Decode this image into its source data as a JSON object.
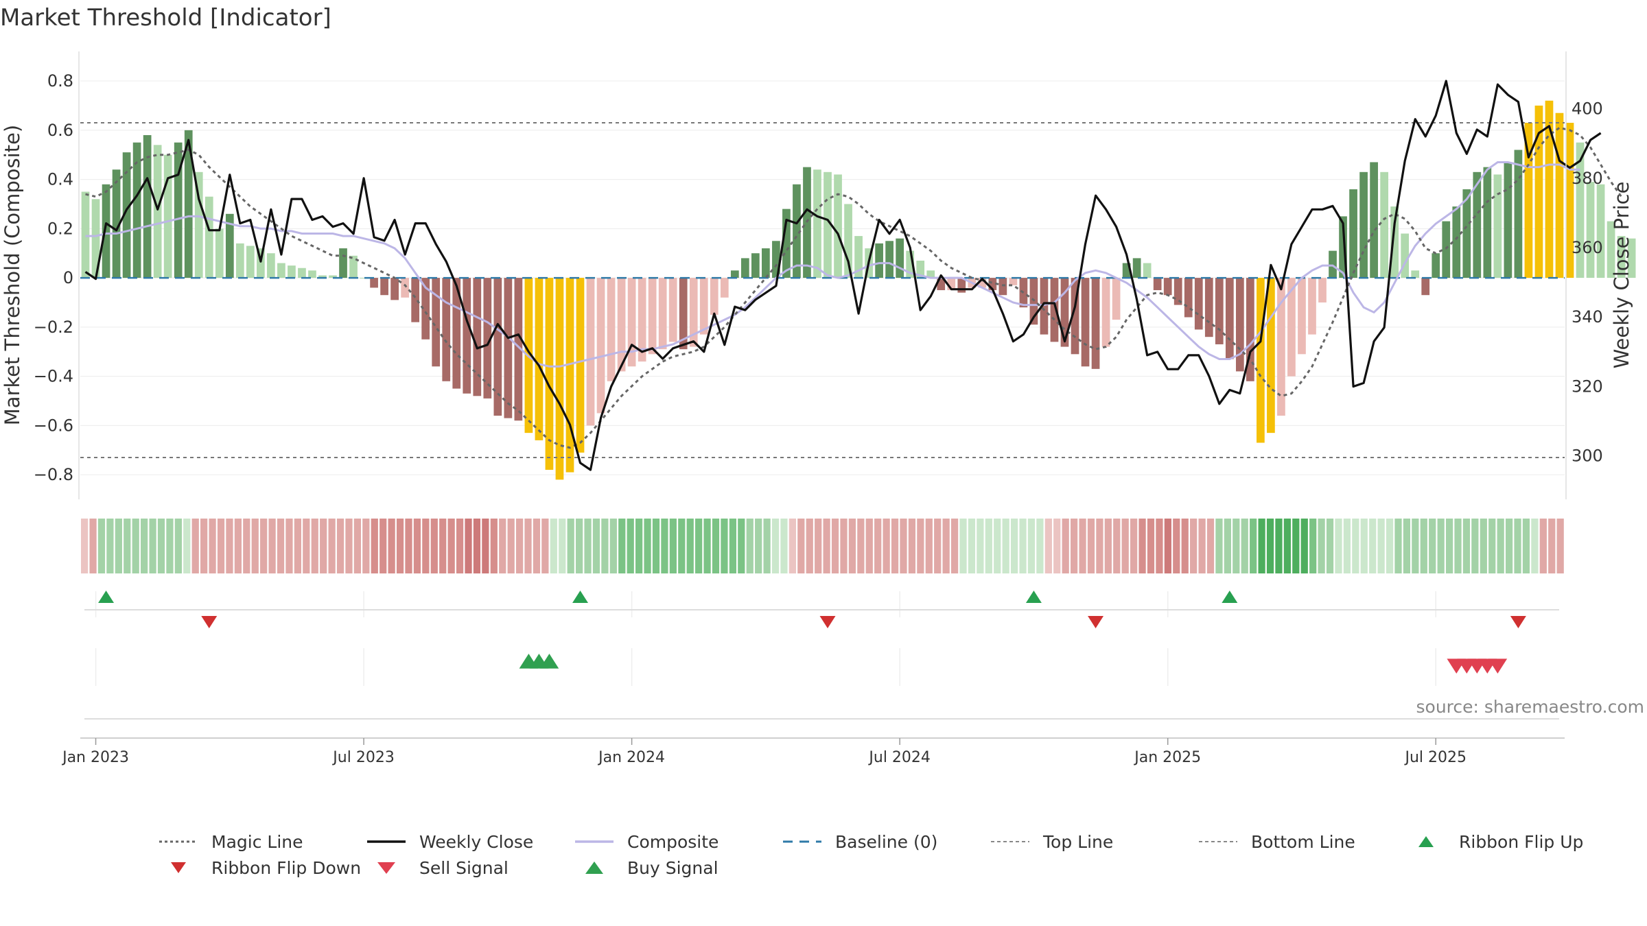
{
  "chart_data": {
    "type": "bar",
    "title": "Market Threshold [Indicator]",
    "ylabel": "Market Threshold (Composite)",
    "y2label": "Weekly Close Price",
    "ylim": [
      -0.9,
      0.92
    ],
    "y2lim": [
      287.5,
      416.5
    ],
    "yticks": [
      {
        "v": 0.8,
        "label": "0.8"
      },
      {
        "v": 0.6,
        "label": "0.6"
      },
      {
        "v": 0.4,
        "label": "0.4"
      },
      {
        "v": 0.2,
        "label": "0.2"
      },
      {
        "v": 0,
        "label": "0"
      },
      {
        "v": -0.2,
        "label": "−0.2"
      },
      {
        "v": -0.4,
        "label": "−0.4"
      },
      {
        "v": -0.6,
        "label": "−0.6"
      },
      {
        "v": -0.8,
        "label": "−0.8"
      }
    ],
    "y2ticks": [
      {
        "v": 400,
        "label": "400"
      },
      {
        "v": 380,
        "label": "380"
      },
      {
        "v": 360,
        "label": "360"
      },
      {
        "v": 340,
        "label": "340"
      },
      {
        "v": 320,
        "label": "320"
      },
      {
        "v": 300,
        "label": "300"
      }
    ],
    "xticks": [
      {
        "week": 1,
        "label": "Jan 2023"
      },
      {
        "week": 27,
        "label": "Jul 2023"
      },
      {
        "week": 53,
        "label": "Jan 2024"
      },
      {
        "week": 79,
        "label": "Jul 2024"
      },
      {
        "week": 105,
        "label": "Jan 2025"
      },
      {
        "week": 131,
        "label": "Jul 2025"
      }
    ],
    "weeks": 144,
    "top_line": 0.63,
    "bottom_line": -0.73,
    "baseline": 0,
    "composite": [
      0.35,
      0.32,
      0.38,
      0.44,
      0.51,
      0.55,
      0.58,
      0.54,
      0.5,
      0.55,
      0.6,
      0.43,
      0.33,
      0.2,
      0.26,
      0.14,
      0.13,
      0.12,
      0.1,
      0.06,
      0.05,
      0.04,
      0.03,
      0.01,
      0.01,
      0.12,
      0.09,
      0,
      -0.04,
      -0.07,
      -0.09,
      -0.08,
      -0.18,
      -0.25,
      -0.36,
      -0.42,
      -0.45,
      -0.47,
      -0.48,
      -0.49,
      -0.56,
      -0.57,
      -0.58,
      -0.63,
      -0.66,
      -0.78,
      -0.82,
      -0.79,
      -0.71,
      -0.6,
      -0.55,
      -0.42,
      -0.38,
      -0.36,
      -0.34,
      -0.31,
      -0.29,
      -0.26,
      -0.29,
      -0.28,
      -0.23,
      -0.15,
      -0.08,
      0.03,
      0.08,
      0.1,
      0.12,
      0.15,
      0.28,
      0.38,
      0.45,
      0.44,
      0.43,
      0.42,
      0.3,
      0.17,
      0.12,
      0.14,
      0.15,
      0.16,
      0.11,
      0.07,
      0.03,
      -0.05,
      -0.05,
      -0.06,
      -0.04,
      -0.04,
      -0.05,
      -0.07,
      -0.03,
      -0.12,
      -0.19,
      -0.23,
      -0.26,
      -0.28,
      -0.31,
      -0.36,
      -0.37,
      -0.28,
      -0.17,
      0.06,
      0.08,
      0.06,
      -0.05,
      -0.07,
      -0.11,
      -0.16,
      -0.21,
      -0.24,
      -0.27,
      -0.33,
      -0.38,
      -0.42,
      -0.67,
      -0.63,
      -0.56,
      -0.4,
      -0.31,
      -0.23,
      -0.1,
      0.11,
      0.25,
      0.36,
      0.43,
      0.47,
      0.43,
      0.29,
      0.18,
      0.03,
      -0.07,
      0.1,
      0.23,
      0.29,
      0.36,
      0.43,
      0.45,
      0.42,
      0.47,
      0.52,
      0.63,
      0.7,
      0.72,
      0.67,
      0.63,
      0.55,
      0.39,
      0.38,
      0.23,
      0.17,
      0.16
    ],
    "magic_line": [
      0.34,
      0.33,
      0.35,
      0.39,
      0.43,
      0.47,
      0.49,
      0.5,
      0.5,
      0.51,
      0.52,
      0.5,
      0.45,
      0.41,
      0.37,
      0.33,
      0.29,
      0.26,
      0.23,
      0.2,
      0.17,
      0.15,
      0.13,
      0.11,
      0.09,
      0.09,
      0.08,
      0.06,
      0.04,
      0.02,
      0,
      -0.03,
      -0.08,
      -0.14,
      -0.2,
      -0.26,
      -0.31,
      -0.35,
      -0.39,
      -0.43,
      -0.47,
      -0.51,
      -0.54,
      -0.58,
      -0.62,
      -0.66,
      -0.68,
      -0.69,
      -0.67,
      -0.63,
      -0.58,
      -0.53,
      -0.48,
      -0.44,
      -0.4,
      -0.37,
      -0.34,
      -0.32,
      -0.31,
      -0.3,
      -0.28,
      -0.24,
      -0.2,
      -0.15,
      -0.1,
      -0.05,
      0,
      0.05,
      0.11,
      0.17,
      0.23,
      0.28,
      0.32,
      0.34,
      0.33,
      0.3,
      0.26,
      0.23,
      0.21,
      0.19,
      0.17,
      0.14,
      0.11,
      0.07,
      0.04,
      0.02,
      0,
      -0.01,
      -0.02,
      -0.03,
      -0.03,
      -0.06,
      -0.09,
      -0.13,
      -0.17,
      -0.21,
      -0.24,
      -0.27,
      -0.29,
      -0.28,
      -0.24,
      -0.17,
      -0.12,
      -0.07,
      -0.06,
      -0.07,
      -0.09,
      -0.12,
      -0.15,
      -0.18,
      -0.21,
      -0.25,
      -0.29,
      -0.33,
      -0.4,
      -0.45,
      -0.48,
      -0.47,
      -0.42,
      -0.36,
      -0.27,
      -0.18,
      -0.08,
      0.02,
      0.11,
      0.19,
      0.24,
      0.26,
      0.24,
      0.19,
      0.12,
      0.1,
      0.12,
      0.16,
      0.21,
      0.26,
      0.31,
      0.34,
      0.36,
      0.4,
      0.46,
      0.53,
      0.58,
      0.61,
      0.6,
      0.58,
      0.53,
      0.46,
      0.39,
      0.33
    ],
    "composite_smooth": [
      0.17,
      0.17,
      0.18,
      0.18,
      0.19,
      0.2,
      0.21,
      0.22,
      0.23,
      0.24,
      0.25,
      0.25,
      0.24,
      0.23,
      0.22,
      0.21,
      0.21,
      0.2,
      0.2,
      0.19,
      0.19,
      0.18,
      0.18,
      0.18,
      0.18,
      0.17,
      0.17,
      0.16,
      0.15,
      0.14,
      0.12,
      0.08,
      0.02,
      -0.04,
      -0.07,
      -0.1,
      -0.12,
      -0.14,
      -0.16,
      -0.18,
      -0.21,
      -0.24,
      -0.28,
      -0.32,
      -0.35,
      -0.36,
      -0.36,
      -0.35,
      -0.34,
      -0.33,
      -0.32,
      -0.31,
      -0.3,
      -0.3,
      -0.29,
      -0.29,
      -0.28,
      -0.27,
      -0.25,
      -0.23,
      -0.21,
      -0.19,
      -0.17,
      -0.15,
      -0.12,
      -0.08,
      -0.04,
      0,
      0.03,
      0.05,
      0.05,
      0.04,
      0.01,
      0,
      0.01,
      0.03,
      0.05,
      0.06,
      0.06,
      0.04,
      0.02,
      0.01,
      0,
      0,
      0,
      0,
      -0.02,
      -0.04,
      -0.06,
      -0.08,
      -0.1,
      -0.11,
      -0.11,
      -0.11,
      -0.1,
      -0.06,
      -0.01,
      0.02,
      0.03,
      0.02,
      0,
      -0.02,
      -0.05,
      -0.08,
      -0.12,
      -0.16,
      -0.2,
      -0.24,
      -0.28,
      -0.31,
      -0.33,
      -0.33,
      -0.31,
      -0.27,
      -0.22,
      -0.16,
      -0.1,
      -0.05,
      0,
      0.03,
      0.05,
      0.05,
      0.02,
      -0.06,
      -0.12,
      -0.14,
      -0.1,
      -0.02,
      0.06,
      0.13,
      0.18,
      0.22,
      0.25,
      0.28,
      0.32,
      0.38,
      0.44,
      0.47,
      0.47,
      0.46,
      0.45,
      0.45,
      0.46,
      0.46,
      0.44,
      0.44
    ],
    "weekly_close": [
      353,
      351,
      367,
      365,
      371,
      375,
      380,
      371,
      380,
      381,
      391,
      374,
      365,
      365,
      381,
      367,
      368,
      356,
      371,
      358,
      374,
      374,
      368,
      369,
      366,
      367,
      364,
      380,
      363,
      362,
      368,
      358,
      367,
      367,
      361,
      356,
      349,
      339,
      331,
      332,
      338,
      334,
      335,
      330,
      326,
      320,
      315,
      309,
      298,
      296,
      311,
      320,
      326,
      332,
      330,
      331,
      328,
      331,
      332,
      333,
      330,
      341,
      332,
      343,
      342,
      345,
      347,
      349,
      368,
      367,
      371,
      369,
      368,
      364,
      356,
      341,
      356,
      368,
      364,
      368,
      360,
      342,
      346,
      352,
      348,
      348,
      348,
      351,
      348,
      341,
      333,
      335,
      340,
      344,
      344,
      333,
      343,
      361,
      375,
      371,
      366,
      358,
      345,
      329,
      330,
      325,
      325,
      329,
      329,
      323,
      315,
      319,
      318,
      330,
      333,
      355,
      348,
      361,
      366,
      371,
      371,
      372,
      367,
      320,
      321,
      333,
      337,
      367,
      385,
      397,
      392,
      398,
      408,
      393,
      387,
      394,
      392,
      407,
      404,
      402,
      386,
      393,
      395,
      385,
      383,
      385,
      391,
      393
    ],
    "ribbon": [
      -2,
      -3,
      2,
      2,
      2,
      2,
      2,
      2,
      2,
      2,
      2,
      2,
      1,
      -3,
      -3,
      -3,
      -3,
      -3,
      -3,
      -3,
      -3,
      -3,
      -3,
      -3,
      -3,
      -3,
      -3,
      -3,
      -3,
      -3,
      -3,
      -3,
      -3,
      -3,
      -4,
      -4,
      -4,
      -4,
      -4,
      -4,
      -4,
      -4,
      -4,
      -4,
      -4,
      -5,
      -5,
      -5,
      -4,
      -3,
      -3,
      -3,
      -3,
      -3,
      -3,
      1,
      1,
      2,
      2,
      2,
      2,
      2,
      2,
      3,
      3,
      3,
      3,
      3,
      3,
      3,
      3,
      3,
      3,
      3,
      3,
      3,
      3,
      3,
      2,
      2,
      2,
      1,
      1,
      -2,
      -3,
      -3,
      -3,
      -3,
      -3,
      -3,
      -3,
      -3,
      -3,
      -3,
      -3,
      -3,
      -3,
      -3,
      -3,
      -3,
      -3,
      -3,
      -3,
      1,
      1,
      1,
      1,
      1,
      1,
      1,
      1,
      1,
      1,
      -2,
      -2,
      -3,
      -3,
      -3,
      -3,
      -3,
      -3,
      -3,
      -3,
      -3,
      -4,
      -4,
      -4,
      -5,
      -4,
      -4,
      -3,
      -3,
      -3,
      2,
      2,
      2,
      2,
      3,
      4,
      4,
      4,
      4,
      4,
      4,
      3,
      2,
      2,
      1,
      1,
      1,
      1,
      1,
      1,
      1,
      2,
      2,
      2,
      2,
      2,
      2,
      2,
      2,
      2,
      2,
      2,
      2,
      2,
      2,
      2,
      2,
      1,
      -3,
      -3,
      -3
    ],
    "ribbon_flip_up_weeks": [
      2,
      48,
      92,
      111
    ],
    "ribbon_flip_down_weeks": [
      12,
      72,
      98,
      139
    ],
    "buy_signal_weeks": [
      43,
      44,
      45
    ],
    "sell_signal_weeks": [
      133,
      134,
      135,
      136,
      137
    ],
    "legend": [
      "Magic Line",
      "Weekly Close",
      "Composite",
      "Baseline (0)",
      "Top Line",
      "Bottom Line",
      "Ribbon Flip Up",
      "Ribbon Flip Down",
      "Sell Signal",
      "Buy Signal"
    ],
    "source": "source: sharemaestro.com"
  },
  "colors": {
    "pos_dark": "#5e925e",
    "pos_light": "#b0d9ad",
    "neg_dark": "#a76a66",
    "neg_light": "#ebbab5",
    "extreme": "#f5c007",
    "weekly_close": "#111111",
    "composite_smooth": "#bcb6e6",
    "magic_line": "#666666",
    "baseline": "#2f7aa8",
    "flip_up": "#28a050",
    "flip_down": "#d03030",
    "sell": "#e04050",
    "buy": "#30a050"
  },
  "legend_icons": {
    "Magic Line": "dotted-line-icon",
    "Weekly Close": "solid-line-icon",
    "Composite": "light-line-icon",
    "Baseline (0)": "dashed-line-icon",
    "Top Line": "dotted-line-icon",
    "Bottom Line": "dotted-line-icon",
    "Ribbon Flip Up": "triangle-up-icon",
    "Ribbon Flip Down": "triangle-down-icon",
    "Sell Signal": "triangle-down-icon",
    "Buy Signal": "triangle-up-icon"
  }
}
